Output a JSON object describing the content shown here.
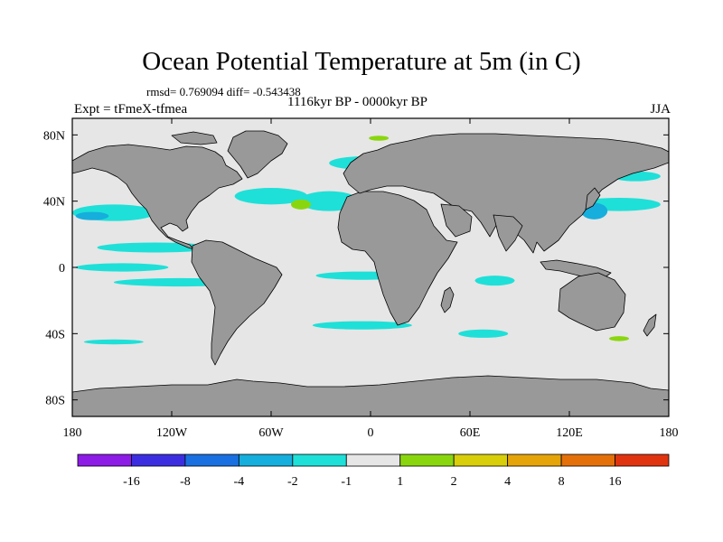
{
  "title": "Ocean Potential Temperature at 5m (in C)",
  "stats": "rmsd= 0.769094 diff= -0.543438",
  "period": "1116kyr BP - 0000kyr BP",
  "experiment": "Expt = tFmeX-tfmea",
  "season": "JJA",
  "colors": {
    "ocean_background": "#e6e6e6",
    "land": "#999999",
    "coast": "#000000"
  },
  "map": {
    "projection": "cylindrical-equidistant",
    "lon_range": [
      -180,
      180
    ],
    "lat_range": [
      -90,
      90
    ],
    "x_ticks": [
      {
        "value": -180,
        "label": "180"
      },
      {
        "value": -120,
        "label": "120W"
      },
      {
        "value": -60,
        "label": "60W"
      },
      {
        "value": 0,
        "label": "0"
      },
      {
        "value": 60,
        "label": "60E"
      },
      {
        "value": 120,
        "label": "120E"
      },
      {
        "value": 180,
        "label": "180"
      }
    ],
    "y_ticks": [
      {
        "value": 80,
        "label": "80N"
      },
      {
        "value": 40,
        "label": "40N"
      },
      {
        "value": 0,
        "label": "0"
      },
      {
        "value": -40,
        "label": "40S"
      },
      {
        "value": -80,
        "label": "80S"
      }
    ]
  },
  "colorbar": {
    "bins": [
      {
        "color": "#8c1ce6"
      },
      {
        "color": "#3c2ee0"
      },
      {
        "color": "#1a70e0"
      },
      {
        "color": "#16aedc"
      },
      {
        "color": "#1ee0d8"
      },
      {
        "color": "#e6e6e6"
      },
      {
        "color": "#8ad60e"
      },
      {
        "color": "#d8ce0a"
      },
      {
        "color": "#e4a40a"
      },
      {
        "color": "#e4700a"
      },
      {
        "color": "#e03410"
      }
    ],
    "labels": [
      "-16",
      "-8",
      "-4",
      "-2",
      "-1",
      "1",
      "2",
      "4",
      "8",
      "16"
    ]
  },
  "anomaly_patches": [
    {
      "region": "north-atlantic",
      "lon": -60,
      "lat": 43,
      "rx": 22,
      "ry": 5,
      "bin": 4
    },
    {
      "region": "north-atlantic-east",
      "lon": -25,
      "lat": 40,
      "rx": 18,
      "ry": 6,
      "bin": 4
    },
    {
      "region": "north-atlantic-center",
      "lon": -42,
      "lat": 38,
      "rx": 6,
      "ry": 3,
      "bin": 6
    },
    {
      "region": "nordic-seas",
      "lon": -5,
      "lat": 63,
      "rx": 20,
      "ry": 4,
      "bin": 4
    },
    {
      "region": "arctic",
      "lon": 5,
      "lat": 78,
      "rx": 6,
      "ry": 1.5,
      "bin": 6
    },
    {
      "region": "north-pacific-east",
      "lon": -155,
      "lat": 33,
      "rx": 25,
      "ry": 5,
      "bin": 4
    },
    {
      "region": "north-pacific-east-core",
      "lon": -168,
      "lat": 31,
      "rx": 10,
      "ry": 2.5,
      "bin": 3
    },
    {
      "region": "north-pacific-west",
      "lon": 150,
      "lat": 38,
      "rx": 25,
      "ry": 4,
      "bin": 4
    },
    {
      "region": "japan-coast",
      "lon": 135,
      "lat": 34,
      "rx": 8,
      "ry": 5,
      "bin": 3
    },
    {
      "region": "bering",
      "lon": 160,
      "lat": 55,
      "rx": 15,
      "ry": 3,
      "bin": 4
    },
    {
      "region": "east-pacific",
      "lon": -130,
      "lat": 12,
      "rx": 35,
      "ry": 3,
      "bin": 4
    },
    {
      "region": "equatorial-pacific",
      "lon": -150,
      "lat": 0,
      "rx": 28,
      "ry": 2.5,
      "bin": 4
    },
    {
      "region": "south-pacific",
      "lon": -115,
      "lat": -9,
      "rx": 40,
      "ry": 2.5,
      "bin": 4
    },
    {
      "region": "south-atlantic",
      "lon": -5,
      "lat": -5,
      "rx": 28,
      "ry": 2.5,
      "bin": 4
    },
    {
      "region": "indian-ocean",
      "lon": 75,
      "lat": -8,
      "rx": 12,
      "ry": 3,
      "bin": 4
    },
    {
      "region": "southern-atlantic",
      "lon": -5,
      "lat": -35,
      "rx": 30,
      "ry": 2.5,
      "bin": 4
    },
    {
      "region": "southern-pacific",
      "lon": -155,
      "lat": -45,
      "rx": 18,
      "ry": 1.5,
      "bin": 4
    },
    {
      "region": "southern-indian",
      "lon": 68,
      "lat": -40,
      "rx": 15,
      "ry": 2.5,
      "bin": 4
    },
    {
      "region": "tasman-sea",
      "lon": 150,
      "lat": -43,
      "rx": 6,
      "ry": 1.5,
      "bin": 6
    }
  ]
}
